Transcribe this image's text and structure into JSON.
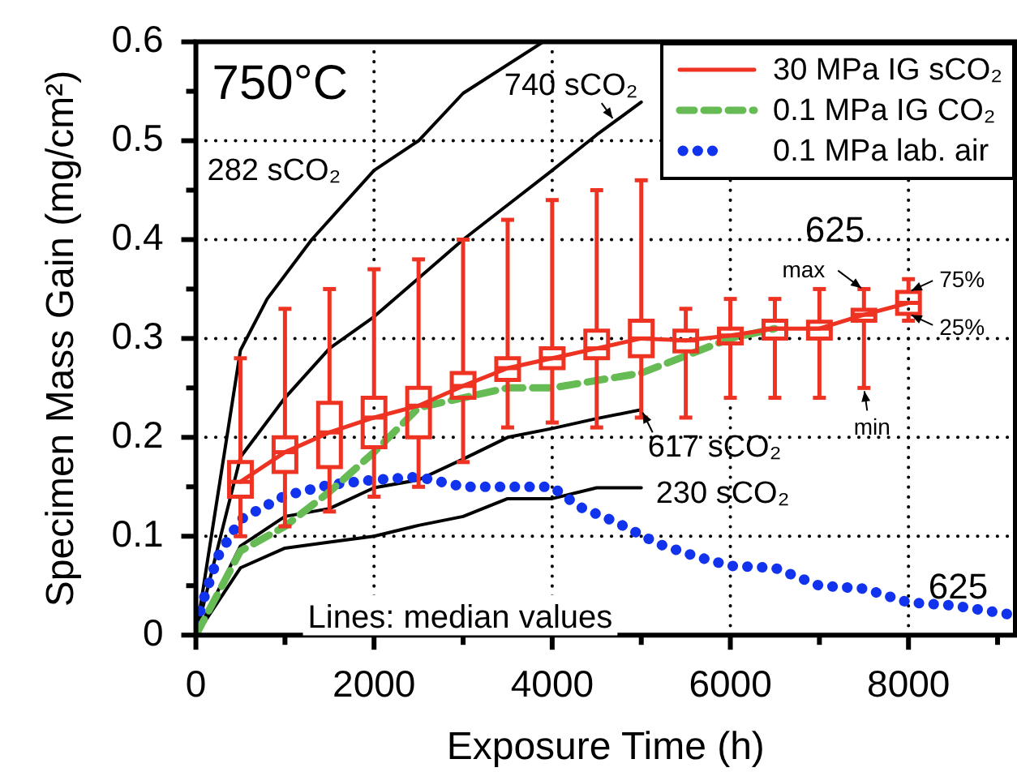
{
  "chart_data": {
    "type": "line",
    "xlabel": "Exposure Time (h)",
    "ylabel": "Specimen Mass Gain (mg/cm²)",
    "xlim": [
      0,
      9200
    ],
    "xticks": [
      0,
      {
        "value": 1000,
        "label": null
      },
      2000,
      {
        "value": 3000,
        "label": null
      },
      4000,
      {
        "value": 5000,
        "label": null
      },
      6000,
      {
        "value": 7000,
        "label": null
      },
      8000,
      {
        "value": 9000,
        "label": null
      }
    ],
    "ylim": [
      0,
      0.6
    ],
    "yticks": [
      0,
      {
        "value": 0.05,
        "label": null
      },
      0.1,
      {
        "value": 0.15,
        "label": null
      },
      0.2,
      {
        "value": 0.25,
        "label": null
      },
      0.3,
      {
        "value": 0.35,
        "label": null
      },
      0.4,
      {
        "value": 0.45,
        "label": null
      },
      0.5,
      {
        "value": 0.55,
        "label": null
      },
      0.6
    ],
    "grid": true,
    "legend": "top right",
    "annotations": [
      "750°C",
      "282 sCO₂",
      {
        "text": "740 sCO₂",
        "x": 4700,
        "y": 0.52
      },
      {
        "text": "617 sCO₂",
        "x": 5000,
        "y": 0.228
      },
      {
        "text": "230 sCO₂",
        "x": 5000,
        "y": 0.149
      },
      "625",
      "625",
      {
        "text": "max",
        "x": 7500,
        "y": 0.349
      },
      {
        "text": "min",
        "x": 7500,
        "y": 0.25
      },
      {
        "text": "75%",
        "x": 8000,
        "y": 0.347
      },
      {
        "text": "25%",
        "x": 8000,
        "y": 0.325
      },
      "Lines: median values"
    ],
    "series": [
      {
        "type": "line",
        "name": "30 MPa IG sCO₂",
        "color": "#ee3322",
        "x": [
          500,
          1000,
          1500,
          2000,
          2500,
          3000,
          3500,
          4000,
          4500,
          5000,
          5500,
          6000,
          6500,
          7000,
          7500,
          8000
        ],
        "values": [
          0.155,
          0.185,
          0.205,
          0.22,
          0.232,
          0.252,
          0.27,
          0.28,
          0.29,
          0.3,
          0.298,
          0.303,
          0.31,
          0.31,
          0.324,
          0.336
        ]
      },
      {
        "type": "box",
        "color": "#ee3322",
        "x": [
          500,
          1000,
          1500,
          2000,
          2500,
          3000,
          3500,
          4000,
          4500,
          5000,
          5500,
          6000,
          6500,
          7000,
          7500,
          8000
        ],
        "boxes": [
          {
            "low": 0.1,
            "q1": 0.14,
            "median": 0.155,
            "q3": 0.175,
            "high": 0.28
          },
          {
            "low": 0.11,
            "q1": 0.165,
            "median": 0.185,
            "q3": 0.2,
            "high": 0.33
          },
          {
            "low": 0.125,
            "q1": 0.17,
            "median": 0.205,
            "q3": 0.235,
            "high": 0.35
          },
          {
            "low": 0.14,
            "q1": 0.19,
            "median": 0.22,
            "q3": 0.24,
            "high": 0.37
          },
          {
            "low": 0.15,
            "q1": 0.2,
            "median": 0.232,
            "q3": 0.25,
            "high": 0.38
          },
          {
            "low": 0.175,
            "q1": 0.24,
            "median": 0.252,
            "q3": 0.265,
            "high": 0.4
          },
          {
            "low": 0.21,
            "q1": 0.258,
            "median": 0.27,
            "q3": 0.28,
            "high": 0.42
          },
          {
            "low": 0.215,
            "q1": 0.27,
            "median": 0.28,
            "q3": 0.29,
            "high": 0.44
          },
          {
            "low": 0.21,
            "q1": 0.28,
            "median": 0.29,
            "q3": 0.308,
            "high": 0.45
          },
          {
            "low": 0.22,
            "q1": 0.282,
            "median": 0.3,
            "q3": 0.318,
            "high": 0.46
          },
          {
            "low": 0.22,
            "q1": 0.287,
            "median": 0.298,
            "q3": 0.308,
            "high": 0.33
          },
          {
            "low": 0.24,
            "q1": 0.295,
            "median": 0.303,
            "q3": 0.31,
            "high": 0.34
          },
          {
            "low": 0.24,
            "q1": 0.3,
            "median": 0.31,
            "q3": 0.318,
            "high": 0.34
          },
          {
            "low": 0.24,
            "q1": 0.3,
            "median": 0.31,
            "q3": 0.317,
            "high": 0.35
          },
          {
            "low": 0.25,
            "q1": 0.318,
            "median": 0.324,
            "q3": 0.329,
            "high": 0.35
          },
          {
            "low": 0.318,
            "q1": 0.325,
            "median": 0.336,
            "q3": 0.347,
            "high": 0.36
          }
        ]
      },
      {
        "type": "line",
        "name": "0.1 MPa IG CO₂",
        "color": "#66bb55",
        "line_style": "dashed",
        "x": [
          0,
          500,
          1000,
          1500,
          2000,
          2500,
          3000,
          3500,
          4000,
          5000,
          6000,
          6500
        ],
        "values": [
          0,
          0.085,
          0.11,
          0.145,
          0.185,
          0.23,
          0.24,
          0.25,
          0.25,
          0.265,
          0.3,
          0.31
        ]
      },
      {
        "type": "line",
        "name": "0.1 MPa lab. air",
        "color": "#1133ee",
        "line_style": "dotted",
        "x": [
          0,
          100,
          250,
          500,
          1000,
          1500,
          2000,
          2500,
          3000,
          4000,
          4300,
          4700,
          5200,
          5600,
          6000,
          6500,
          7000,
          7500,
          8000,
          8500,
          9200
        ],
        "values": [
          0.01,
          0.04,
          0.08,
          0.117,
          0.141,
          0.152,
          0.157,
          0.16,
          0.15,
          0.15,
          0.13,
          0.115,
          0.092,
          0.08,
          0.07,
          0.068,
          0.05,
          0.047,
          0.033,
          0.03,
          0.02
        ]
      },
      {
        "type": "line",
        "color": "#000000",
        "x": [
          0,
          500,
          800,
          1300,
          2000,
          2500,
          3000,
          3900
        ],
        "values": [
          0,
          0.288,
          0.34,
          0.4,
          0.47,
          0.5,
          0.548,
          0.6
        ]
      },
      {
        "type": "line",
        "color": "#000000",
        "x": [
          0,
          500,
          1000,
          1500,
          2000,
          3000,
          3500,
          4000,
          4500,
          5000
        ],
        "values": [
          0,
          0.18,
          0.24,
          0.29,
          0.322,
          0.4,
          0.435,
          0.47,
          0.506,
          0.539
        ]
      },
      {
        "type": "line",
        "color": "#000000",
        "x": [
          0,
          500,
          1000,
          1500,
          2000,
          2500,
          3000,
          3500,
          4000,
          4500,
          5000
        ],
        "values": [
          0,
          0.09,
          0.12,
          0.128,
          0.149,
          0.157,
          0.178,
          0.2,
          0.209,
          0.219,
          0.228
        ]
      },
      {
        "type": "line",
        "color": "#000000",
        "x": [
          0,
          500,
          1000,
          1500,
          2000,
          2500,
          3000,
          3500,
          4000,
          4500,
          5000
        ],
        "values": [
          0,
          0.068,
          0.088,
          0.094,
          0.1,
          0.111,
          0.12,
          0.138,
          0.138,
          0.149,
          0.149
        ]
      }
    ]
  }
}
